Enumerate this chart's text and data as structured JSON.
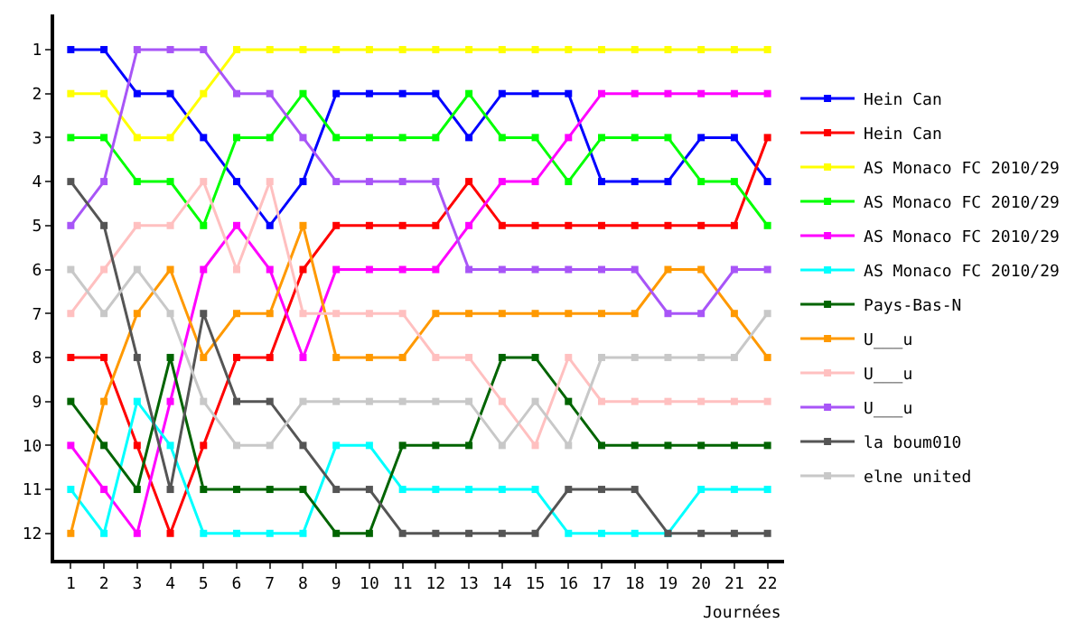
{
  "chart_data": {
    "type": "line",
    "xlabel": "Journées",
    "x": [
      1,
      2,
      3,
      4,
      5,
      6,
      7,
      8,
      9,
      10,
      11,
      12,
      13,
      14,
      15,
      16,
      17,
      18,
      19,
      20,
      21,
      22
    ],
    "xlim": [
      0.5,
      22.5
    ],
    "xticks": [
      1,
      2,
      3,
      4,
      5,
      6,
      7,
      8,
      9,
      10,
      11,
      12,
      13,
      14,
      15,
      16,
      17,
      18,
      19,
      20,
      21,
      22
    ],
    "ylim": [
      12.6,
      0.2
    ],
    "yticks": [
      1,
      2,
      3,
      4,
      5,
      6,
      7,
      8,
      9,
      10,
      11,
      12
    ],
    "legend": "right",
    "marker": "square",
    "line_style": "solid",
    "series": [
      {
        "name": "Hein Can",
        "color": "#0000ff",
        "values": [
          1,
          1,
          2,
          2,
          3,
          4,
          5,
          4,
          2,
          2,
          2,
          2,
          3,
          2,
          2,
          2,
          4,
          4,
          4,
          3,
          3,
          4
        ]
      },
      {
        "name": "Hein Can",
        "color": "#ff0000",
        "values": [
          8,
          8,
          10,
          12,
          10,
          8,
          8,
          6,
          5,
          5,
          5,
          5,
          4,
          5,
          5,
          5,
          5,
          5,
          5,
          5,
          5,
          3
        ]
      },
      {
        "name": "AS Monaco FC 2010/29",
        "color": "#ffff00",
        "values": [
          2,
          2,
          3,
          3,
          2,
          1,
          1,
          1,
          1,
          1,
          1,
          1,
          1,
          1,
          1,
          1,
          1,
          1,
          1,
          1,
          1,
          1
        ]
      },
      {
        "name": "AS Monaco FC 2010/29",
        "color": "#00ff00",
        "values": [
          3,
          3,
          4,
          4,
          5,
          3,
          3,
          2,
          3,
          3,
          3,
          3,
          2,
          3,
          3,
          4,
          3,
          3,
          3,
          4,
          4,
          5
        ]
      },
      {
        "name": "AS Monaco FC 2010/29",
        "color": "#ff00ff",
        "values": [
          10,
          11,
          12,
          9,
          6,
          5,
          6,
          8,
          6,
          6,
          6,
          6,
          5,
          4,
          4,
          3,
          2,
          2,
          2,
          2,
          2,
          2
        ]
      },
      {
        "name": "AS Monaco FC 2010/29",
        "color": "#00ffff",
        "values": [
          11,
          12,
          9,
          10,
          12,
          12,
          12,
          12,
          10,
          10,
          11,
          11,
          11,
          11,
          11,
          12,
          12,
          12,
          12,
          11,
          11,
          11
        ]
      },
      {
        "name": "Pays-Bas-N",
        "color": "#006400",
        "values": [
          9,
          10,
          11,
          8,
          11,
          11,
          11,
          11,
          12,
          12,
          10,
          10,
          10,
          8,
          8,
          9,
          10,
          10,
          10,
          10,
          10,
          10
        ]
      },
      {
        "name": "U___u",
        "color": "#ff9900",
        "values": [
          12,
          9,
          7,
          6,
          8,
          7,
          7,
          5,
          8,
          8,
          8,
          7,
          7,
          7,
          7,
          7,
          7,
          7,
          6,
          6,
          7,
          8
        ]
      },
      {
        "name": "U___u",
        "color": "#ffc0c0",
        "values": [
          7,
          6,
          5,
          5,
          4,
          6,
          4,
          7,
          7,
          7,
          7,
          8,
          8,
          9,
          10,
          8,
          9,
          9,
          9,
          9,
          9,
          9
        ]
      },
      {
        "name": "U___u",
        "color": "#a855f7",
        "values": [
          5,
          4,
          1,
          1,
          1,
          2,
          2,
          3,
          4,
          4,
          4,
          4,
          6,
          6,
          6,
          6,
          6,
          6,
          7,
          7,
          6,
          6
        ]
      },
      {
        "name": "la boum010",
        "color": "#555555",
        "values": [
          4,
          5,
          8,
          11,
          7,
          9,
          9,
          10,
          11,
          11,
          12,
          12,
          12,
          12,
          12,
          11,
          11,
          11,
          12,
          12,
          12,
          12
        ]
      },
      {
        "name": "elne united",
        "color": "#c8c8c8",
        "values": [
          6,
          7,
          6,
          7,
          9,
          10,
          10,
          9,
          9,
          9,
          9,
          9,
          9,
          10,
          9,
          10,
          8,
          8,
          8,
          8,
          8,
          7
        ]
      }
    ]
  }
}
